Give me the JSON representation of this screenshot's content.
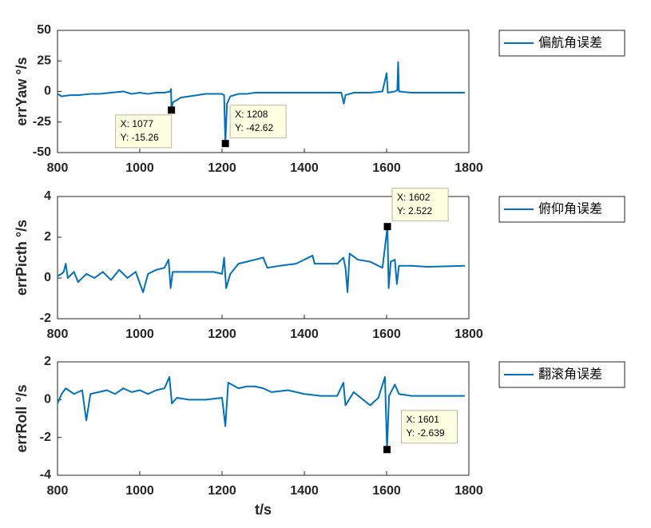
{
  "chart_data": [
    {
      "type": "line",
      "ylabel": "errYaw °/s",
      "x": [
        800,
        810,
        830,
        850,
        880,
        900,
        930,
        960,
        980,
        1000,
        1020,
        1040,
        1060,
        1074,
        1076,
        1077,
        1080,
        1090,
        1100,
        1120,
        1140,
        1160,
        1180,
        1200,
        1205,
        1208,
        1212,
        1220,
        1240,
        1260,
        1280,
        1300,
        1340,
        1400,
        1450,
        1490,
        1496,
        1500,
        1520,
        1560,
        1590,
        1600,
        1603,
        1620,
        1626,
        1628,
        1630,
        1660,
        1700,
        1790
      ],
      "series": [
        {
          "name": "偏航角误差",
          "color": "#0072bd",
          "values": [
            -2,
            -4,
            -3,
            -3,
            -2,
            -2,
            -1,
            0,
            -2,
            -1,
            -2,
            -1,
            -1,
            0,
            2,
            -15.26,
            -9,
            -7,
            -5,
            -4,
            -3,
            -2,
            -2,
            -2,
            -3,
            -42.62,
            -10,
            -4,
            -2,
            -2,
            -1,
            -1,
            -1,
            -1,
            -1,
            -1,
            -10,
            -3,
            -1,
            -1,
            0,
            15,
            -1,
            0,
            1,
            24,
            0,
            -1,
            -1,
            -1
          ]
        }
      ],
      "xlim": [
        800,
        1800
      ],
      "xticks": [
        800,
        1000,
        1200,
        1400,
        1600,
        1800
      ],
      "ylim": [
        -50,
        50
      ],
      "yticks": [
        -50,
        -25,
        0,
        25,
        50
      ],
      "datatips": [
        {
          "x": 1077,
          "y": -15.26,
          "x_label": "X: 1077",
          "y_label": "Y: -15.26"
        },
        {
          "x": 1208,
          "y": -42.62,
          "x_label": "X: 1208",
          "y_label": "Y: -42.62"
        }
      ]
    },
    {
      "type": "line",
      "ylabel": "errPicth °/s",
      "x": [
        800,
        810,
        815,
        820,
        825,
        840,
        850,
        870,
        890,
        910,
        930,
        950,
        970,
        990,
        1008,
        1020,
        1040,
        1060,
        1070,
        1075,
        1080,
        1100,
        1140,
        1180,
        1200,
        1205,
        1210,
        1220,
        1240,
        1260,
        1280,
        1300,
        1310,
        1340,
        1380,
        1420,
        1425,
        1480,
        1495,
        1500,
        1505,
        1510,
        1530,
        1560,
        1590,
        1602,
        1605,
        1610,
        1620,
        1625,
        1630,
        1660,
        1700,
        1790
      ],
      "series": [
        {
          "name": "俯仰角误差",
          "color": "#0072bd",
          "values": [
            0.1,
            0.2,
            0.3,
            0.7,
            0,
            0.3,
            -0.2,
            0.2,
            0,
            0.3,
            -0.1,
            0.4,
            0,
            0.3,
            -0.7,
            0.2,
            0.4,
            0.5,
            0.9,
            -0.5,
            0.3,
            0.3,
            0.3,
            0.3,
            0.2,
            1,
            -0.5,
            0.2,
            0.7,
            0.8,
            0.9,
            1,
            0.5,
            0.6,
            0.7,
            1.1,
            0.7,
            0.7,
            1,
            0.5,
            -0.7,
            1.2,
            0.9,
            0.8,
            0.5,
            2.522,
            -0.5,
            0.8,
            0.9,
            -0.3,
            0.6,
            0.6,
            0.55,
            0.6
          ]
        }
      ],
      "xlim": [
        800,
        1800
      ],
      "xticks": [
        800,
        1000,
        1200,
        1400,
        1600,
        1800
      ],
      "ylim": [
        -2,
        4
      ],
      "yticks": [
        -2,
        0,
        2,
        4
      ],
      "datatips": [
        {
          "x": 1602,
          "y": 2.522,
          "x_label": "X: 1602",
          "y_label": "Y: 2.522"
        }
      ]
    },
    {
      "type": "line",
      "ylabel": "errRoll °/s",
      "xlabel": "t/s",
      "x": [
        800,
        810,
        820,
        840,
        860,
        870,
        880,
        900,
        920,
        940,
        960,
        980,
        1000,
        1020,
        1040,
        1060,
        1072,
        1078,
        1090,
        1120,
        1160,
        1200,
        1208,
        1215,
        1240,
        1260,
        1280,
        1300,
        1320,
        1360,
        1400,
        1440,
        1480,
        1495,
        1500,
        1520,
        1560,
        1580,
        1596,
        1601,
        1606,
        1620,
        1630,
        1660,
        1700,
        1790
      ],
      "series": [
        {
          "name": "翻滚角误差",
          "color": "#0072bd",
          "values": [
            -0.2,
            0.3,
            0.6,
            0.3,
            0.5,
            -1.1,
            0.3,
            0.4,
            0.5,
            0.3,
            0.6,
            0.4,
            0.5,
            0.3,
            0.5,
            0.6,
            1.2,
            -0.2,
            0.1,
            0,
            0,
            0.1,
            -1.4,
            0.9,
            0.6,
            0.7,
            0.7,
            0.6,
            0.4,
            0.5,
            0.3,
            0.2,
            0.2,
            0.9,
            -0.3,
            0.4,
            -0.3,
            0.1,
            1.2,
            -2.639,
            0.2,
            0.8,
            0.3,
            0.2,
            0.2,
            0.2
          ]
        }
      ],
      "xlim": [
        800,
        1800
      ],
      "xticks": [
        800,
        1000,
        1200,
        1400,
        1600,
        1800
      ],
      "ylim": [
        -4,
        2
      ],
      "yticks": [
        -4,
        -2,
        0,
        2
      ],
      "datatips": [
        {
          "x": 1601,
          "y": -2.639,
          "x_label": "X: 1601",
          "y_label": "Y: -2.639"
        }
      ]
    }
  ]
}
